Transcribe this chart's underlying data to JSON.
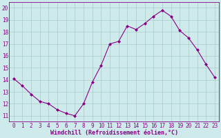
{
  "x": [
    0,
    1,
    2,
    3,
    4,
    5,
    6,
    7,
    8,
    9,
    10,
    11,
    12,
    13,
    14,
    15,
    16,
    17,
    18,
    19,
    20,
    21,
    22,
    23
  ],
  "y": [
    14.1,
    13.5,
    12.8,
    12.2,
    12.0,
    11.5,
    11.2,
    11.0,
    12.0,
    13.8,
    15.2,
    17.0,
    17.2,
    18.5,
    18.2,
    18.7,
    19.3,
    19.8,
    19.3,
    18.1,
    17.5,
    16.5,
    15.3,
    14.2
  ],
  "line_color": "#880088",
  "marker": "D",
  "marker_size": 2,
  "xlabel": "Windchill (Refroidissement éolien,°C)",
  "xlabel_fontsize": 6.0,
  "ylabel_ticks": [
    11,
    12,
    13,
    14,
    15,
    16,
    17,
    18,
    19,
    20
  ],
  "xlim": [
    -0.5,
    23.5
  ],
  "ylim": [
    10.5,
    20.5
  ],
  "bg_color": "#ceeaea",
  "grid_color": "#aacaca",
  "tick_fontsize": 5.5,
  "title": ""
}
